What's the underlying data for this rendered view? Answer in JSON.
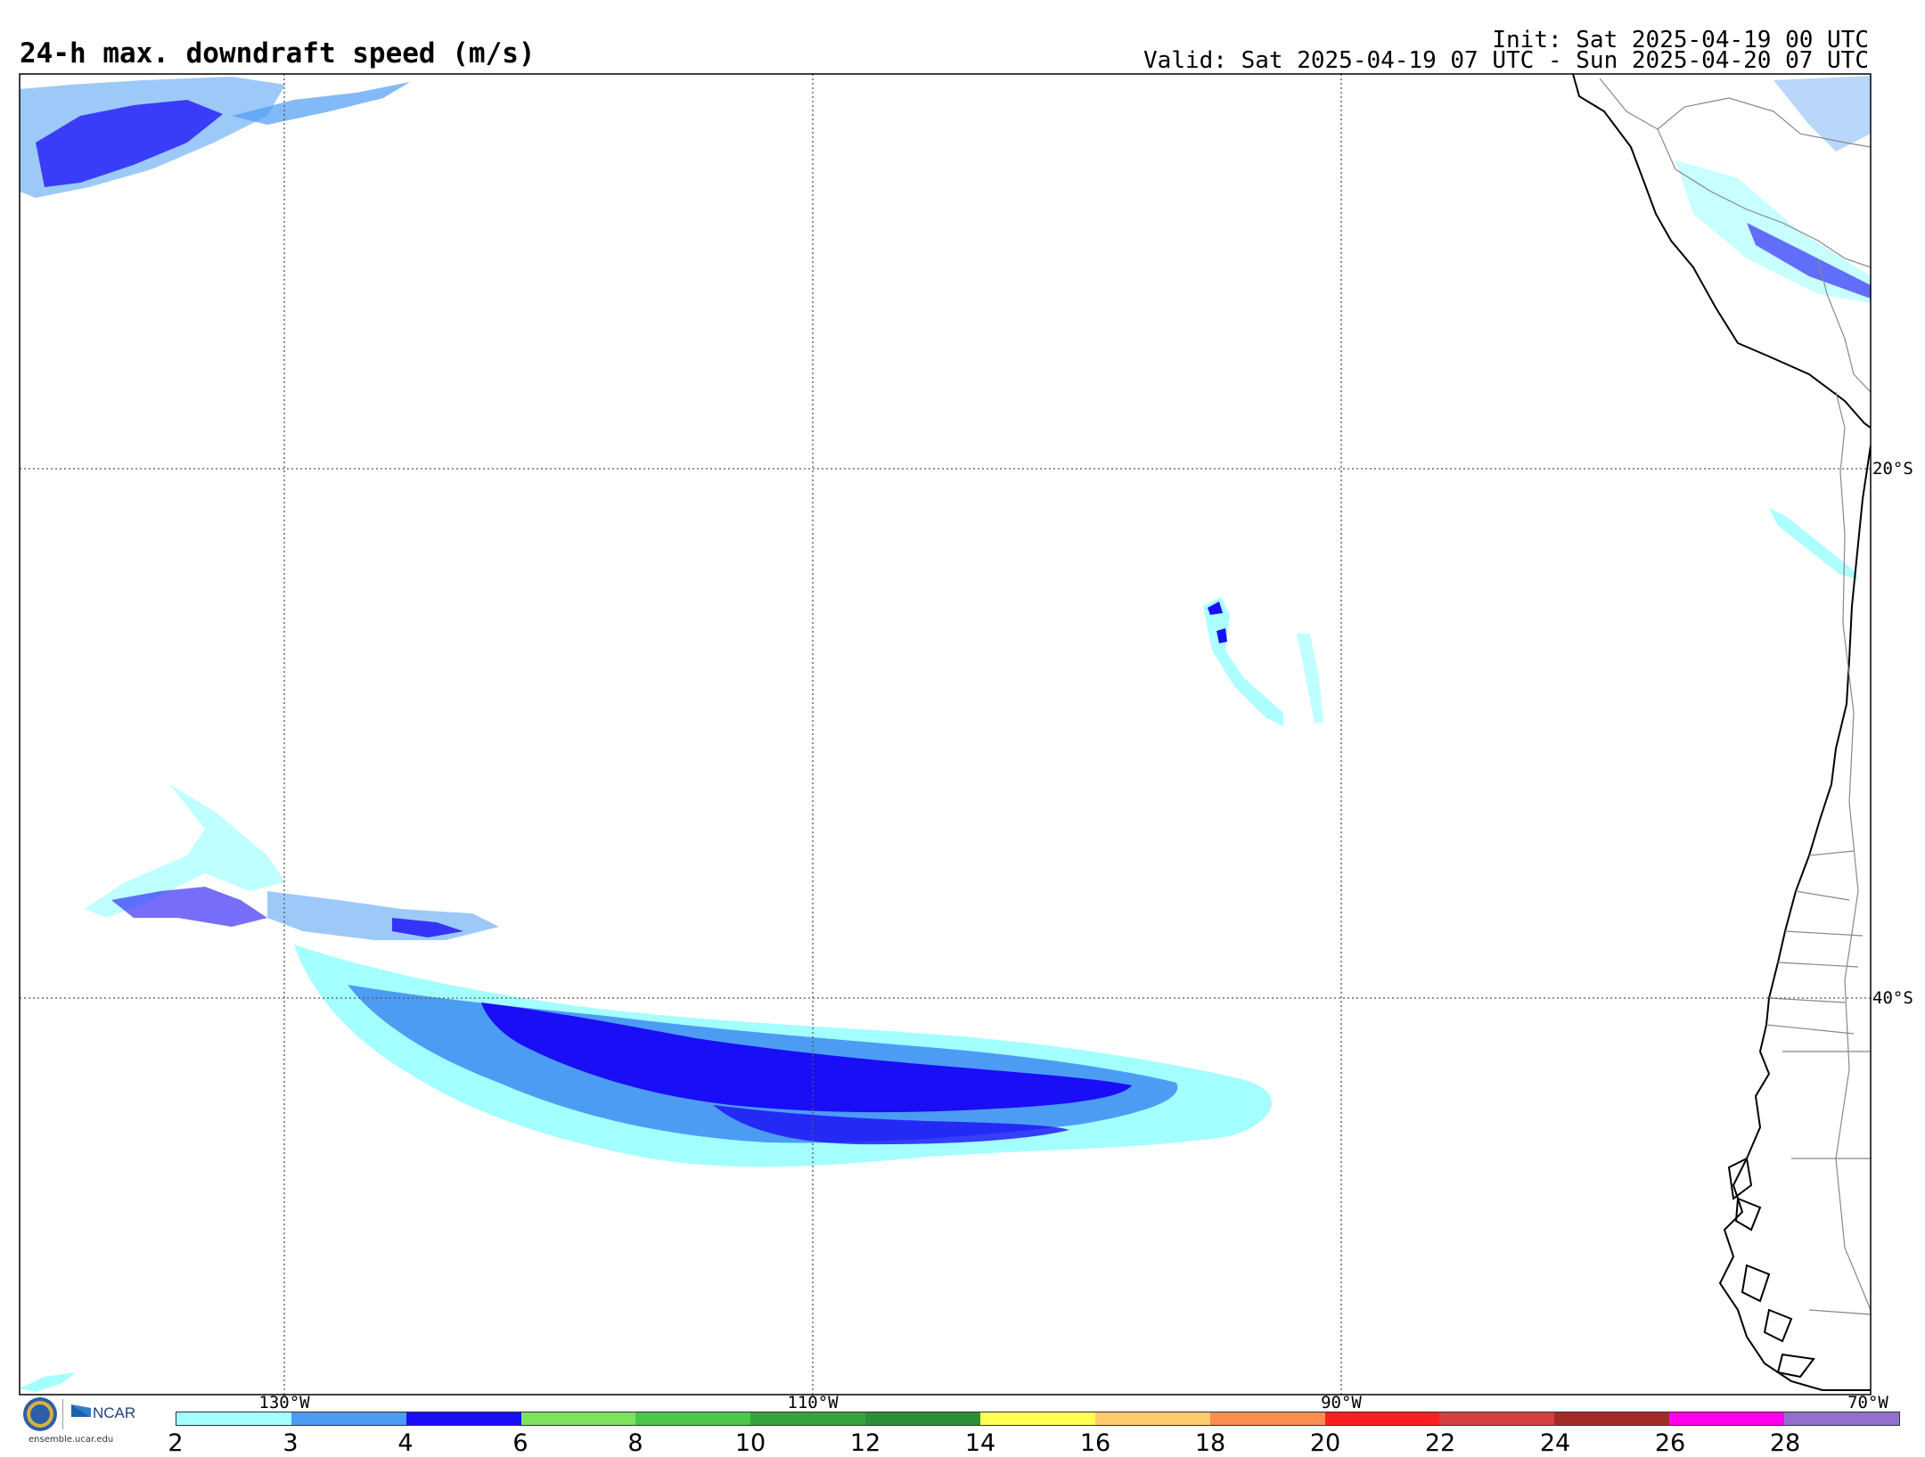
{
  "header": {
    "title": "24-h max. downdraft speed (m/s)",
    "init": "Init: Sat 2025-04-19 00 UTC",
    "valid": "Valid: Sat 2025-04-19 07 UTC - Sun 2025-04-20 07 UTC"
  },
  "map": {
    "lat_labels": [
      "20°S",
      "40°S"
    ],
    "lon_labels": [
      "130°W",
      "110°W",
      "90°W",
      "70°W"
    ],
    "grid": true,
    "region": "Southeast Pacific / western South America"
  },
  "colorbar": {
    "labels": [
      "2",
      "3",
      "4",
      "6",
      "8",
      "10",
      "12",
      "14",
      "16",
      "18",
      "20",
      "22",
      "24",
      "26",
      "28"
    ],
    "colors": [
      "#a4ffff",
      "#4d9cf4",
      "#1a0ef6",
      "#7ee05c",
      "#4dc64c",
      "#35a33c",
      "#2a8f36",
      "#fffe55",
      "#fdcb6e",
      "#fb8c4f",
      "#fb1e20",
      "#d2403f",
      "#a22b2a",
      "#ff00ee",
      "#9370ce"
    ]
  },
  "logo": {
    "nsf": "NSF",
    "ncar": "NCAR",
    "url": "ensemble.ucar.edu"
  },
  "colors": {
    "light_cyan": "#a4ffff",
    "medium_blue": "#4d9cf4",
    "dark_blue": "#1a0ef6",
    "coast": "#000000",
    "borders": "#888888",
    "gridline": "#555555"
  }
}
